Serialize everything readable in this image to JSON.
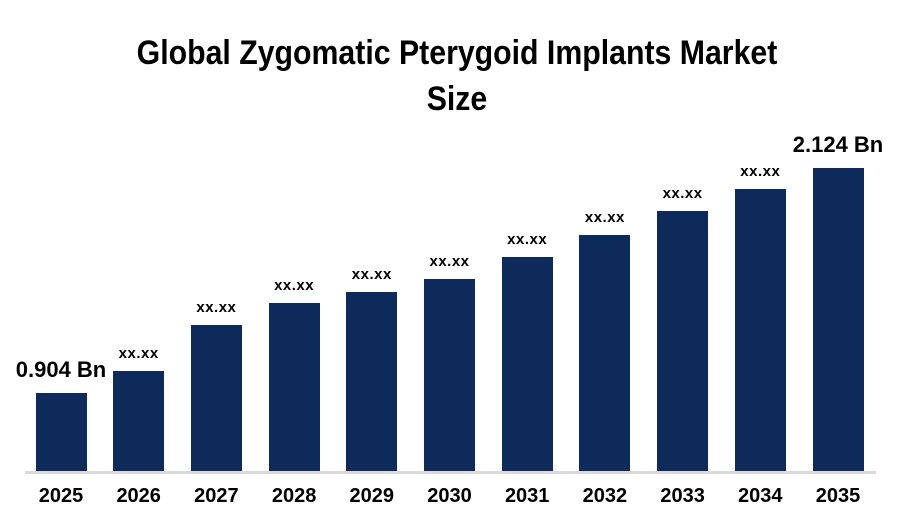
{
  "page": {
    "background": "#ffffff"
  },
  "title_lines": [
    "Global Zygomatic Pterygoid Implants Market",
    "Size"
  ],
  "chart_data": {
    "type": "bar",
    "title": "Global Zygomatic Pterygoid Implants Market Size",
    "unit": "Bn",
    "categories": [
      "2025",
      "2026",
      "2027",
      "2028",
      "2029",
      "2030",
      "2031",
      "2032",
      "2033",
      "2034",
      "2035"
    ],
    "values": [
      0.904,
      1.02,
      1.27,
      1.39,
      1.45,
      1.52,
      1.64,
      1.76,
      1.89,
      2.01,
      2.124
    ],
    "value_labels": [
      "0.904 Bn",
      "xx.xx",
      "xx.xx",
      "xx.xx",
      "xx.xx",
      "xx.xx",
      "xx.xx",
      "xx.xx",
      "xx.xx",
      "xx.xx",
      "2.124 Bn"
    ],
    "xlabel": "",
    "ylabel": "",
    "grid": false,
    "legend": false,
    "y_axis": {
      "visible": false,
      "baseline_value": 0.48
    },
    "bar_color": "#0e2a5a",
    "axis_line_color": "#d9d9d9",
    "label_color": "#000000"
  }
}
